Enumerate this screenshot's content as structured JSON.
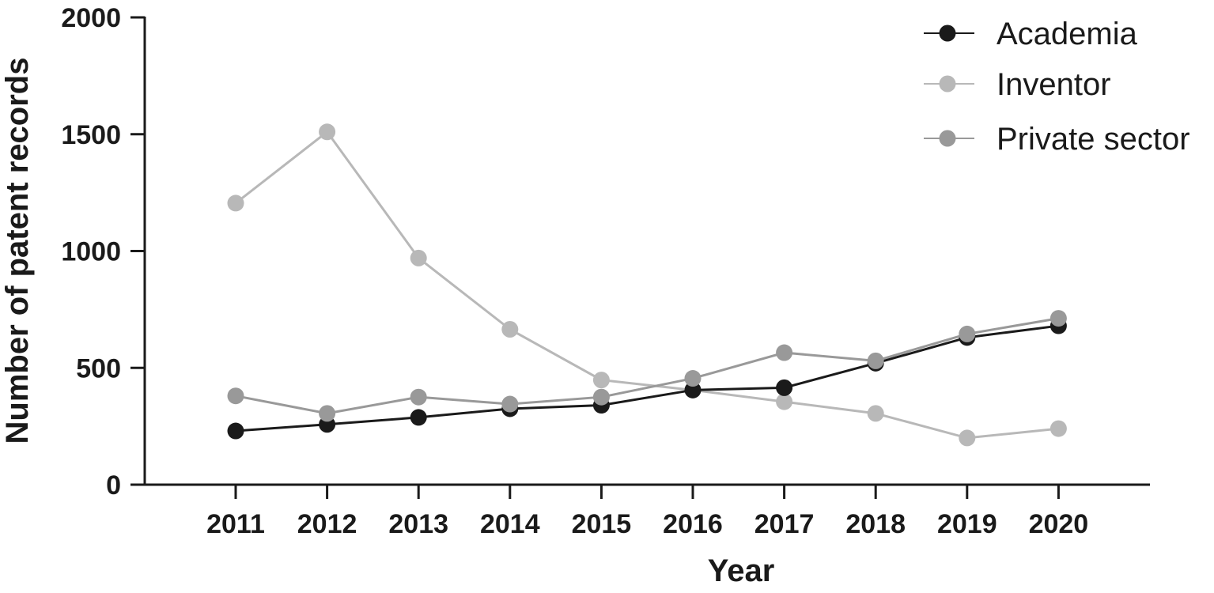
{
  "chart_data": {
    "type": "line",
    "title": "",
    "xlabel": "Year",
    "ylabel": "Number of patent records",
    "x": [
      "2011",
      "2012",
      "2013",
      "2014",
      "2015",
      "2016",
      "2017",
      "2018",
      "2019",
      "2020"
    ],
    "ylim": [
      0,
      2000
    ],
    "yticks": [
      "0",
      "500",
      "1000",
      "1500",
      "2000"
    ],
    "grid": false,
    "legend_position": "top-right",
    "series": [
      {
        "name": "Academia",
        "color": "#1a1a1a",
        "values": [
          230,
          258,
          288,
          325,
          340,
          405,
          415,
          520,
          630,
          680
        ]
      },
      {
        "name": "Inventor",
        "color": "#b8b8b8",
        "values": [
          1205,
          1510,
          970,
          665,
          448,
          405,
          355,
          305,
          200,
          240
        ]
      },
      {
        "name": "Private sector",
        "color": "#999999",
        "values": [
          380,
          305,
          375,
          345,
          375,
          455,
          565,
          530,
          645,
          712
        ]
      }
    ]
  }
}
